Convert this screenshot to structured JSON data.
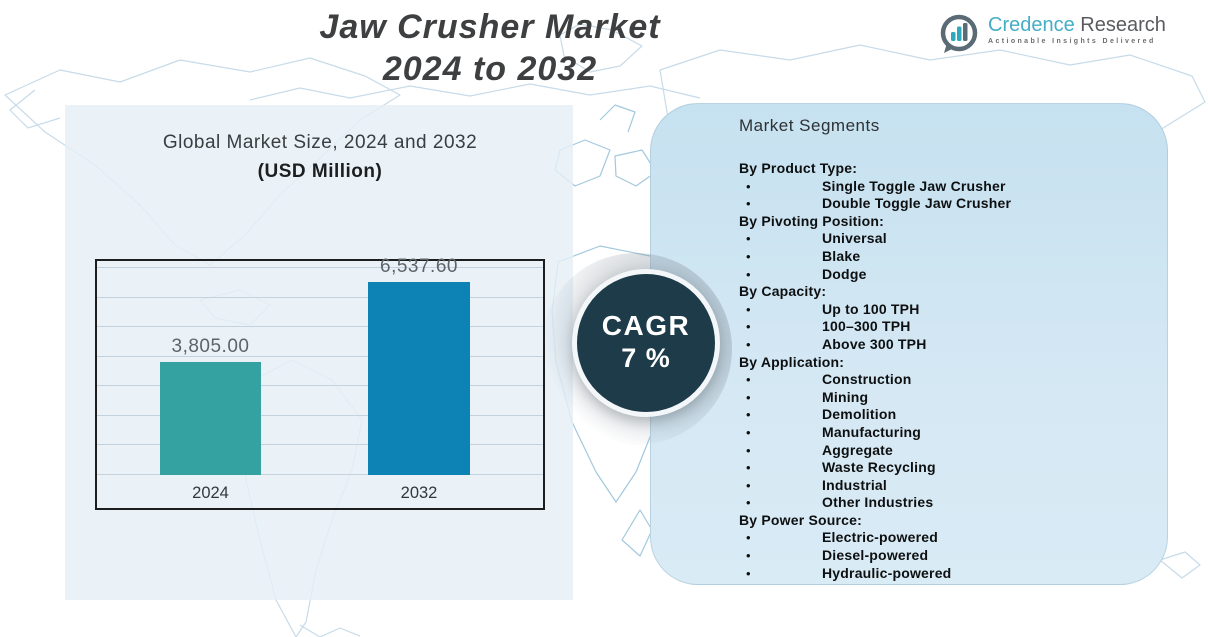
{
  "title": {
    "line1": "Jaw Crusher Market",
    "line2": "2024 to 2032"
  },
  "logo": {
    "brand_primary": "Credence",
    "brand_secondary": "Research",
    "tagline": "Actionable Insights Delivered"
  },
  "chart_header": {
    "line1": "Global Market Size, 2024 and 2032",
    "line2": "(USD Million)"
  },
  "chart_data": {
    "type": "bar",
    "title": "Global Market Size, 2024 and 2032 (USD Million)",
    "categories": [
      "2024",
      "2032"
    ],
    "values": [
      3805.0,
      6537.6
    ],
    "value_labels": [
      "3,805.00",
      "6,537.60"
    ],
    "ylabel": "",
    "xlabel": "",
    "ylim": [
      0,
      7000
    ],
    "grid_interval": 1000,
    "grid": true,
    "legend": false,
    "bar_colors": [
      "#35a2a2",
      "#0c83b4"
    ]
  },
  "cagr": {
    "label": "CAGR",
    "value": "7 %"
  },
  "segments": {
    "heading": "Market Segments",
    "items": [
      {
        "type": "header",
        "label": "By Product Type:"
      },
      {
        "type": "bullet",
        "label": "Single Toggle Jaw Crusher"
      },
      {
        "type": "bullet",
        "label": "Double Toggle Jaw Crusher"
      },
      {
        "type": "header",
        "label": "By Pivoting Position:"
      },
      {
        "type": "bullet",
        "label": "Universal"
      },
      {
        "type": "bullet",
        "label": "Blake"
      },
      {
        "type": "bullet",
        "label": "Dodge"
      },
      {
        "type": "header",
        "label": "By Capacity:"
      },
      {
        "type": "bullet",
        "label": "Up to 100 TPH"
      },
      {
        "type": "bullet",
        "label": "100–300 TPH"
      },
      {
        "type": "bullet",
        "label": "Above 300 TPH"
      },
      {
        "type": "header",
        "label": "By Application:"
      },
      {
        "type": "bullet",
        "label": "Construction"
      },
      {
        "type": "bullet",
        "label": "Mining"
      },
      {
        "type": "bullet",
        "label": "Demolition"
      },
      {
        "type": "bullet",
        "label": "Manufacturing"
      },
      {
        "type": "bullet",
        "label": "Aggregate"
      },
      {
        "type": "bullet",
        "label": "Waste Recycling"
      },
      {
        "type": "bullet",
        "label": "Industrial"
      },
      {
        "type": "bullet",
        "label": "Other Industries"
      },
      {
        "type": "header",
        "label": "By Power Source:"
      },
      {
        "type": "bullet",
        "label": "Electric-powered"
      },
      {
        "type": "bullet",
        "label": "Diesel-powered"
      },
      {
        "type": "bullet",
        "label": "Hydraulic-powered"
      }
    ]
  },
  "colors": {
    "bar_2024": "#35a2a2",
    "bar_2032": "#0c83b4",
    "cagr_circle": "#1d3b48",
    "left_panel": "#e5eff6",
    "right_panel": "#cde4f1",
    "brand_teal": "#45adc6",
    "map_line": "#c7dbe9"
  }
}
